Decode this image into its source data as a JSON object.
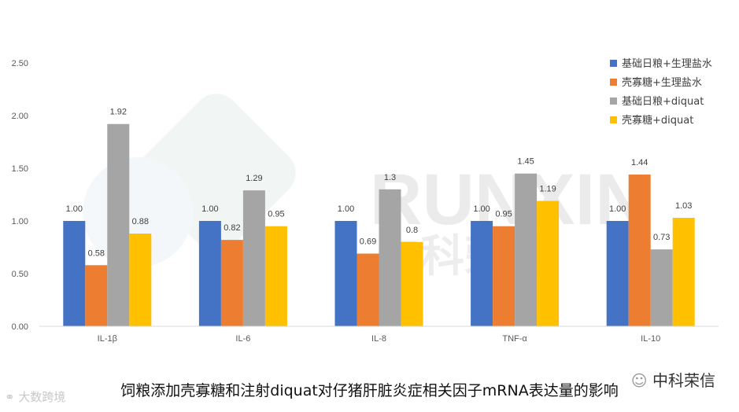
{
  "chart_data": {
    "type": "bar",
    "categories": [
      "IL-1β",
      "IL-6",
      "IL-8",
      "TNF-α",
      "IL-10"
    ],
    "series": [
      {
        "name": "基础日粮+生理盐水",
        "values": [
          1.0,
          1.0,
          1.0,
          1.0,
          1.0
        ],
        "labels": [
          "1.00",
          "1.00",
          "1.00",
          "1.00",
          "1.00"
        ]
      },
      {
        "name": "壳寡糖+生理盐水",
        "values": [
          0.58,
          0.82,
          0.69,
          0.95,
          1.44
        ],
        "labels": [
          "0.58",
          "0.82",
          "0.69",
          "0.95",
          "1.44"
        ]
      },
      {
        "name": "基础日粮+diquat",
        "values": [
          1.92,
          1.29,
          1.3,
          1.45,
          0.73
        ],
        "labels": [
          "1.92",
          "1.29",
          "1.3",
          "1.45",
          "0.73"
        ]
      },
      {
        "name": "壳寡糖+diquat",
        "values": [
          0.88,
          0.95,
          0.8,
          1.19,
          1.03
        ],
        "labels": [
          "0.88",
          "0.95",
          "0.8",
          "1.19",
          "1.03"
        ]
      }
    ],
    "ylim": [
      0,
      2.5
    ],
    "yticks": [
      "0.00",
      "0.50",
      "1.00",
      "1.50",
      "2.00",
      "2.50"
    ],
    "ytick_values": [
      0,
      0.5,
      1.0,
      1.5,
      2.0,
      2.5
    ],
    "colors": [
      "#4472C4",
      "#ED7D31",
      "#A5A5A5",
      "#FFC000"
    ],
    "legend_position": "top-right",
    "grid": false,
    "title": "",
    "xlabel": "",
    "ylabel": ""
  },
  "caption": "饲粮添加壳寡糖和注射diquat对仔猪肝脏炎症相关因子mRNA表达量的影响",
  "watermark": {
    "brand_large": "RUNXIN",
    "brand_cn": "中科荣信",
    "brand_label": "中科荣信",
    "corner": "大数跨境"
  }
}
